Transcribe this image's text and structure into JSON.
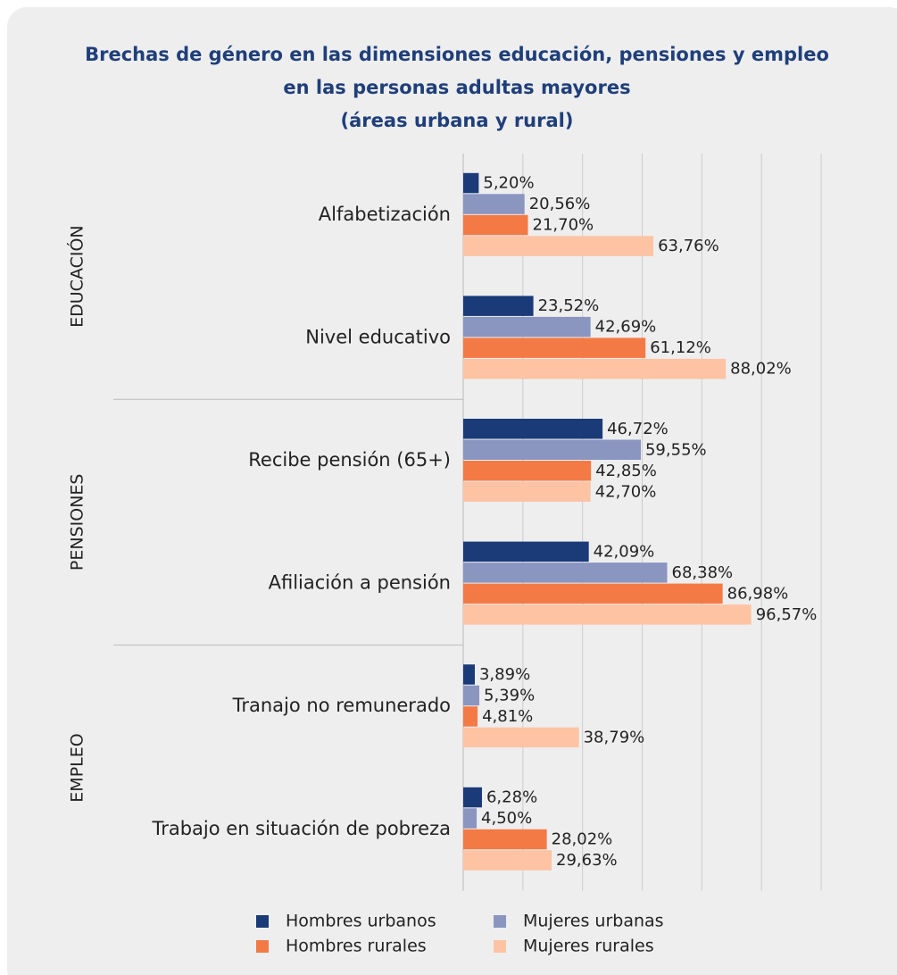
{
  "chart_data": {
    "type": "bar",
    "orientation": "horizontal",
    "title_lines": [
      "Brechas de género en las dimensiones educación, pensiones y empleo",
      "en las personas adultas mayores",
      "(áreas urbana y rural)"
    ],
    "groups": [
      {
        "label": "EDUCACIÓN",
        "categories": [
          "Alfabetización",
          "Nivel educativo"
        ]
      },
      {
        "label": "PENSIONES",
        "categories": [
          "Recibe pensión (65+)",
          "Afiliación a pensión"
        ]
      },
      {
        "label": "EMPLEO",
        "categories": [
          "Tranajo no remunerado",
          "Trabajo en situación de pobreza"
        ]
      }
    ],
    "series": [
      {
        "name": "Hombres urbanos",
        "color": "#1a3a78",
        "values": [
          5.2,
          23.52,
          46.72,
          42.09,
          3.89,
          6.28
        ],
        "value_labels": [
          "5,20%",
          "23,52%",
          "46,72%",
          "42,09%",
          "3,89%",
          "6,28%"
        ]
      },
      {
        "name": "Mujeres urbanas",
        "color": "#8a95c0",
        "values": [
          20.56,
          42.69,
          59.55,
          68.38,
          5.39,
          4.5
        ],
        "value_labels": [
          "20,56%",
          "42,69%",
          "59,55%",
          "68,38%",
          "5,39%",
          "4,50%"
        ]
      },
      {
        "name": "Hombres rurales",
        "color": "#f47a45",
        "values": [
          21.7,
          61.12,
          42.85,
          86.98,
          4.81,
          28.02
        ],
        "value_labels": [
          "21,70%",
          "61,12%",
          "42,85%",
          "86,98%",
          "4,81%",
          "28,02%"
        ]
      },
      {
        "name": "Mujeres rurales",
        "color": "#fdc3a3",
        "values": [
          63.76,
          88.02,
          42.7,
          96.57,
          38.79,
          29.63
        ],
        "value_labels": [
          "63,76%",
          "88,02%",
          "42,70%",
          "96,57%",
          "38,79%",
          "29,63%"
        ]
      }
    ],
    "xlim": [
      0,
      120
    ],
    "xticks": [
      0,
      20,
      40,
      60,
      80,
      100,
      120
    ],
    "grid": true
  }
}
